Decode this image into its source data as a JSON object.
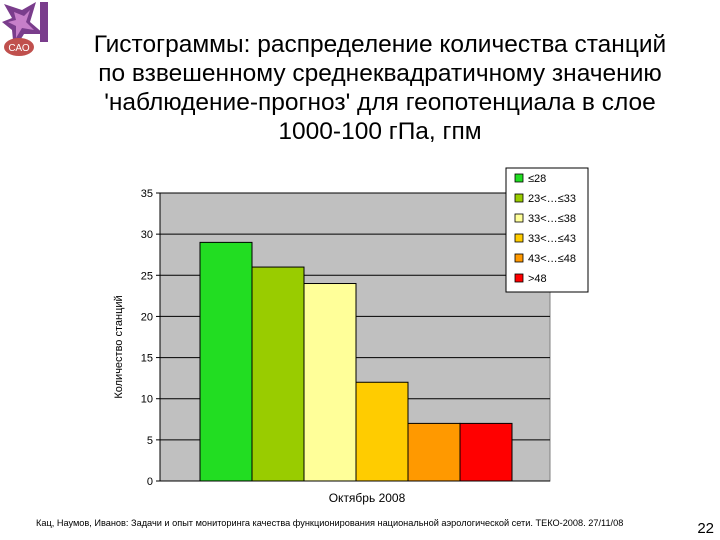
{
  "slide": {
    "title_lines": [
      "Гистограммы: распределение количества станций",
      "по взвешенному среднеквадратичному значению",
      "'наблюдение-прогноз' для геопотенциала в слое",
      "1000-100 гПа, гпм"
    ],
    "logo_text": "САО",
    "footer": "Кац, Наумов, Иванов: Задачи и опыт мониторинга качества функционирования национальной аэрологической сети. ТЕКО-2008. 27/11/08",
    "page_number": "22"
  },
  "chart_data": {
    "type": "bar",
    "ylabel": "Количество станций",
    "xlabel": "Октябрь  2008",
    "ylim": [
      0,
      35
    ],
    "yticks": [
      0,
      5,
      10,
      15,
      20,
      25,
      30,
      35
    ],
    "grid": true,
    "plot_background": "#c0c0c0",
    "legend_position": "top-right",
    "series": [
      {
        "name": "≤28",
        "value": 29,
        "color": "#22dd22"
      },
      {
        "name": "23<…≤33",
        "value": 26,
        "color": "#99cc00"
      },
      {
        "name": "33<…≤38",
        "value": 24,
        "color": "#ffff99"
      },
      {
        "name": "33<…≤43",
        "value": 12,
        "color": "#ffcc00"
      },
      {
        "name": "43<…≤48",
        "value": 7,
        "color": "#ff9900"
      },
      {
        "name": ">48",
        "value": 7,
        "color": "#ff0000"
      }
    ]
  }
}
